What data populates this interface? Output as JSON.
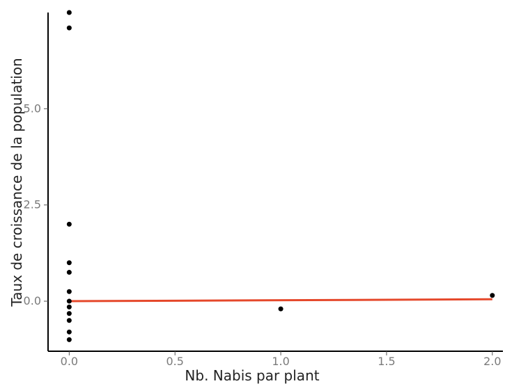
{
  "chart_data": {
    "type": "scatter",
    "title": "",
    "xlabel": "Nb. Nabis par plant",
    "ylabel": "Taux de croissance de la population",
    "xlim": [
      -0.1,
      2.05
    ],
    "ylim": [
      -1.3,
      7.5
    ],
    "grid": false,
    "x_ticks": [
      {
        "value": 0.0,
        "label": "0.0"
      },
      {
        "value": 0.5,
        "label": "0.5"
      },
      {
        "value": 1.0,
        "label": "1.0"
      },
      {
        "value": 1.5,
        "label": "1.5"
      },
      {
        "value": 2.0,
        "label": "2.0"
      }
    ],
    "y_ticks": [
      {
        "value": 0.0,
        "label": "0.0"
      },
      {
        "value": 2.5,
        "label": "2.5"
      },
      {
        "value": 5.0,
        "label": "5.0"
      }
    ],
    "series": [
      {
        "type": "scatter",
        "color": "#000000",
        "points": [
          {
            "x": 0.0,
            "y": 7.5
          },
          {
            "x": 0.0,
            "y": 7.1
          },
          {
            "x": 0.0,
            "y": 2.0
          },
          {
            "x": 0.0,
            "y": 1.0
          },
          {
            "x": 0.0,
            "y": 0.75
          },
          {
            "x": 0.0,
            "y": 0.25
          },
          {
            "x": 0.0,
            "y": 0.0
          },
          {
            "x": 0.0,
            "y": -0.15
          },
          {
            "x": 0.0,
            "y": -0.32
          },
          {
            "x": 0.0,
            "y": -0.5
          },
          {
            "x": 0.0,
            "y": -0.8
          },
          {
            "x": 0.0,
            "y": -1.0
          },
          {
            "x": 1.0,
            "y": -0.2
          },
          {
            "x": 2.0,
            "y": 0.15
          }
        ]
      },
      {
        "type": "line",
        "color": "#e5482b",
        "points": [
          {
            "x": 0.0,
            "y": 0.0
          },
          {
            "x": 2.0,
            "y": 0.05
          }
        ]
      }
    ]
  }
}
